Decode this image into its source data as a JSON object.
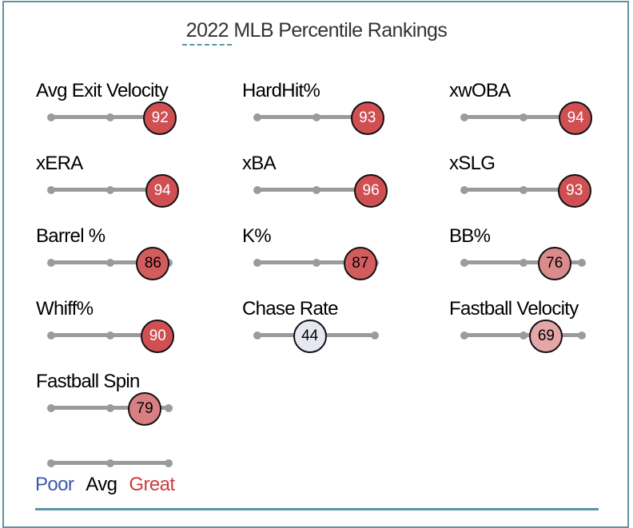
{
  "chart_data": {
    "type": "percentile-sliders",
    "title": "2022 MLB Percentile Rankings",
    "range": [
      0,
      100
    ],
    "metrics": [
      {
        "label": "Avg Exit Velocity",
        "value": 92,
        "color": "#d04f52",
        "text_color": "#ffffff"
      },
      {
        "label": "HardHit%",
        "value": 93,
        "color": "#d04f52",
        "text_color": "#ffffff"
      },
      {
        "label": "xwOBA",
        "value": 94,
        "color": "#d04f52",
        "text_color": "#ffffff"
      },
      {
        "label": "xERA",
        "value": 94,
        "color": "#d04f52",
        "text_color": "#ffffff"
      },
      {
        "label": "xBA",
        "value": 96,
        "color": "#d04f52",
        "text_color": "#ffffff"
      },
      {
        "label": "xSLG",
        "value": 93,
        "color": "#d04f52",
        "text_color": "#ffffff"
      },
      {
        "label": "Barrel %",
        "value": 86,
        "color": "#d35c5e",
        "text_color": "#000000"
      },
      {
        "label": "K%",
        "value": 87,
        "color": "#d35c5e",
        "text_color": "#000000"
      },
      {
        "label": "BB%",
        "value": 76,
        "color": "#dc8b8d",
        "text_color": "#000000"
      },
      {
        "label": "Whiff%",
        "value": 90,
        "color": "#d04f52",
        "text_color": "#ffffff"
      },
      {
        "label": "Chase Rate",
        "value": 44,
        "color": "#e5e8f1",
        "text_color": "#000000"
      },
      {
        "label": "Fastball Velocity",
        "value": 69,
        "color": "#e4a6a7",
        "text_color": "#000000"
      },
      {
        "label": "Fastball Spin",
        "value": 79,
        "color": "#d97f81",
        "text_color": "#000000"
      }
    ],
    "legend": [
      {
        "label": "Poor",
        "color": "#3a5ba8"
      },
      {
        "label": "Avg",
        "color": "#000000"
      },
      {
        "label": "Great",
        "color": "#d03a3a"
      }
    ]
  }
}
